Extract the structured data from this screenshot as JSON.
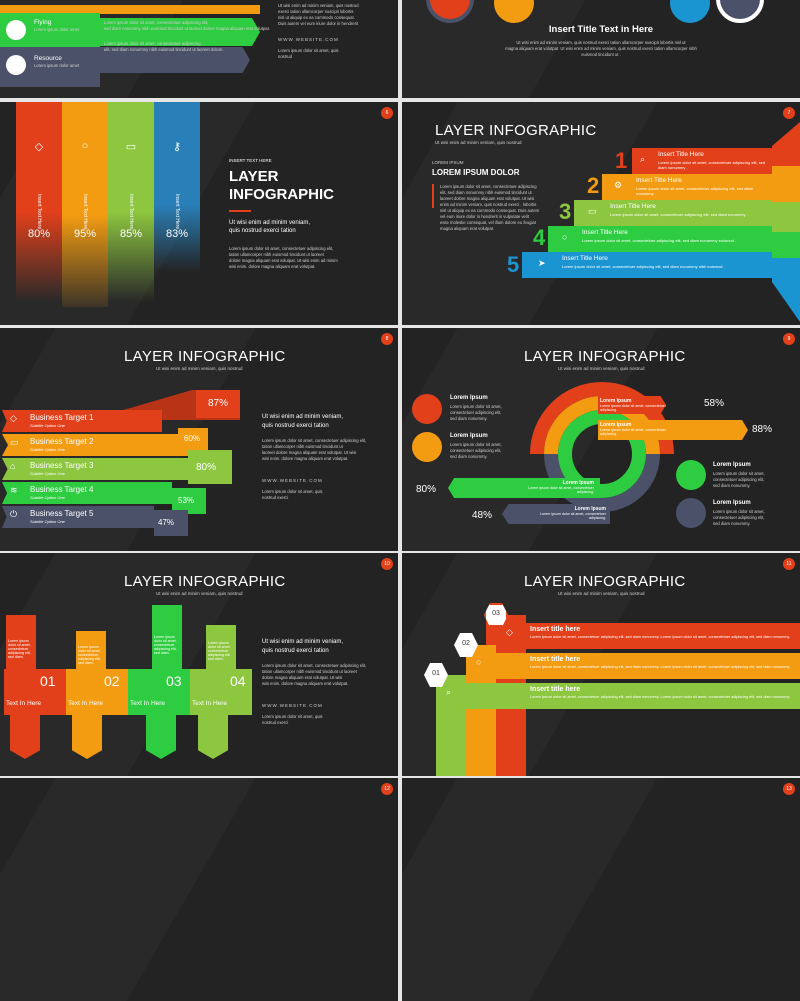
{
  "s1": {
    "rows": [
      {
        "label": "Flying",
        "text": "Lorem ipsum dolor amet"
      },
      {
        "label": "Resource",
        "text": "Lorem ipsum dolor amet"
      }
    ],
    "lines": [
      "Lorem ipsum dolor sit amet, consectetuer adipiscing elit,",
      "sed diam nonummy nibh euismod tincidunt ut laoreet dolore magna aliquam erat volutpat.",
      "Lorem ipsum dolor sit amet, consectetuer adipiscing",
      "elit, sed diam nonummy nibh euismod tincidunt ut laoreet dolore."
    ],
    "right": [
      "Ut wisi enim ad minim veniam, quis nostrud",
      "exerci tation ullamcorper suscipit lobortis",
      "nisl ut aliquip ex ea commodo consequat.",
      "Duis autem vel eum iriure dolor in hendrerit"
    ],
    "website": "WWW.WEBSITE.COM",
    "sm": [
      "Lorem ipsum dolor sit amet, quis",
      "nostrud"
    ]
  },
  "s2": {
    "title": "Insert Title Text in Here",
    "body": [
      "Ut wisi enim ad minim veniam, quis nostrud exerci tation ullamcorper suscipit lobortis nisl ut",
      "magna aliquam erat volutpat. Ut wisi enim ad minim veniam, quis nostrud exerci tation ullamcorper nibh",
      "euismod tincidunt ut ."
    ]
  },
  "s3": {
    "num": "6",
    "cols": [
      {
        "label": "Insert Text Here",
        "pct": "80%",
        "color": "#e2401b"
      },
      {
        "label": "Insert Text Here",
        "pct": "95%",
        "color": "#f39c12"
      },
      {
        "label": "Insert Text Here",
        "pct": "85%",
        "color": "#8dc63f"
      },
      {
        "label": "Insert Text Here",
        "pct": "83%",
        "color": "#2980b9"
      }
    ],
    "kicker": "INSERT TEXT HERE",
    "title1": "LAYER",
    "title2": "INFOGRAPHIC",
    "lead": [
      "Ut wisi enim ad minim veniam,",
      "quis nostrud exerci tation"
    ],
    "body": [
      "Lorem ipsum dolor sit amet, consectetuer adipiscing elit,",
      "tation ullamcorper nibh euismod tincidunt ut laoreet",
      "dolore magna aliquam erat volutpat. Ut wisi enim ad minim",
      "wisi enim. dolore magna aliquam erat volutpat."
    ]
  },
  "s4": {
    "num": "7",
    "title": "LAYER INFOGRAPHIC",
    "sub": "Ut wisi enim ad minim veniam, quis nostrud",
    "kicker": "LOREM IPSUM",
    "heading": "LOREM IPSUM DOLOR",
    "body": [
      "Lorem ipsum dolor sit amet, consectetuer adipiscing",
      "elit, sed diam nonummy nibh euismod tincidunt ut",
      "laoreet dolore magna aliquam erat volutpat. Ut wisi",
      "enim ad minim veniam, quis nostrud exerci . lobortis",
      "nisl ut aliquip ex ea commodo consequat. Duis autem",
      "vel eum iriure dolor in hendrerit in vulputate velit",
      "esse molestie consequat, vel illum dolore eu feugiat",
      "magna aliquam erat volutpat."
    ],
    "steps": [
      {
        "n": "1",
        "title": "Insert Title Here",
        "text": "Lorem ipsum dolor sit amet, consectetuer adipiscing elit, sed diam nonummy .",
        "color": "#e2401b"
      },
      {
        "n": "2",
        "title": "Insert Title Here",
        "text": "Lorem ipsum dolor sit amet, consectetuer adipiscing elit, sed diam nonummy .",
        "color": "#f39c12"
      },
      {
        "n": "3",
        "title": "Insert Title Here",
        "text": "Lorem ipsum dolor sit amet, consectetuer adipiscing elit, sed diam nonummy .",
        "color": "#8dc63f"
      },
      {
        "n": "4",
        "title": "Insert Title Here",
        "text": "Lorem ipsum dolor sit amet, consectetuer adipiscing elit, sed diam nonummy euismod .",
        "color": "#2ecc40"
      },
      {
        "n": "5",
        "title": "Insert Title Here",
        "text": "Lorem ipsum dolor sit amet, consectetuer adipiscing elit, sed diam nonummy nibh euismod .",
        "color": "#1b95d2"
      }
    ]
  },
  "s5": {
    "num": "8",
    "title": "LAYER INFOGRAPHIC",
    "sub": "Ut wisi enim ad minim veniam, quis nostrud",
    "targets": [
      {
        "name": "Business Target 1",
        "sub": "Subtitle Option One",
        "pct": "87%",
        "color": "#e2401b"
      },
      {
        "name": "Business Target 2",
        "sub": "Subtitle Option One",
        "pct": "60%",
        "color": "#f39c12"
      },
      {
        "name": "Business Target 3",
        "sub": "Subtitle Option One",
        "pct": "80%",
        "color": "#8dc63f"
      },
      {
        "name": "Business Target 4",
        "sub": "Subtitle Option One",
        "pct": "53%",
        "color": "#2ecc40"
      },
      {
        "name": "Business Target 5",
        "sub": "Subtitle Option One",
        "pct": "47%",
        "color": "#4a5168"
      }
    ],
    "lead": [
      "Ut wisi enim ad minim veniam,",
      "quis nostrud exerci tation"
    ],
    "body": [
      "Lorem ipsum dolor sit amet, consectetuer adipiscing elit,",
      "tation ullamcorper nibh euismod tincidunt ut",
      "laoreet dolore magna aliquam erat volutpat. Ut wisi",
      "wisi enim. dolore magna aliquam erat volutpat."
    ],
    "website": "WWW.WEBSITE.COM",
    "sm": [
      "Lorem ipsum dolor sit amet, quis",
      "nostrud exerci"
    ]
  },
  "s6": {
    "num": "9",
    "title": "LAYER INFOGRAPHIC",
    "sub": "Ut wisi enim ad minim veniam, quis nostrud",
    "items": [
      {
        "h": "Lorem Ipsum",
        "t": [
          "Lorem ipsum dolor sit amet,",
          "consectetuer adipiscing elit,",
          "sed diam nonummy."
        ]
      },
      {
        "h": "Lorem Ipsum",
        "t": [
          "Lorem ipsum dolor sit amet,",
          "consectetuer adipiscing elit,",
          "sed diam nonummy."
        ]
      },
      {
        "h": "Lorem Ipsum",
        "t": [
          "Lorem ipsum dolor sit amet,",
          "consectetuer adipiscing elit,",
          "sed diam nonummy."
        ]
      },
      {
        "h": "Lorem Ipsum",
        "t": [
          "Lorem ipsum dolor sit amet,",
          "consectetuer adipiscing elit,",
          "sed diam nonummy."
        ]
      }
    ],
    "pct": [
      "58%",
      "88%",
      "80%",
      "48%"
    ],
    "arc": [
      {
        "h": "Lorem Ipsum",
        "t": "Lorem ipsum dolor sit amet, consectetuer adipiscing."
      },
      {
        "h": "Lorem Ipsum",
        "t": "Lorem ipsum dolor sit amet, consectetuer adipiscing."
      },
      {
        "h": "Lorem Ipsum",
        "t": "Lorem ipsum dolor sit amet, consectetuer adipiscing."
      },
      {
        "h": "Lorem Ipsum",
        "t": "Lorem ipsum dolor sit amet, consectetuer adipiscing."
      }
    ]
  },
  "s7": {
    "num": "10",
    "title": "LAYER INFOGRAPHIC",
    "sub": "Ut wisi enim ad minim veniam, quis nostrud",
    "blocks": [
      {
        "n": "01",
        "label": "Text In Here",
        "color": "#e2401b"
      },
      {
        "n": "02",
        "label": "Text In Here",
        "color": "#f39c12"
      },
      {
        "n": "03",
        "label": "Text In Here",
        "color": "#2ecc40"
      },
      {
        "n": "04",
        "label": "Text In Here",
        "color": "#8dc63f"
      }
    ],
    "small": "Lorem ipsum dolor sit amet, consectetuer adipiscing elit, sed diam.",
    "lead": [
      "Ut wisi enim ad minim veniam,",
      "quis nostrud exerci tation"
    ],
    "body": [
      "Lorem ipsum dolor sit amet, consectetuer adipiscing elit,",
      "tation ullamcorper nibh euismod tincidunt ut laoreet",
      "dolore magna aliquam erat volutpat. Ut wisi",
      "wisi enim. dolore magna aliquam erat volutpat."
    ],
    "website": "WWW.WEBSITE.COM",
    "sm": [
      "Lorem ipsum dolor sit amet, quis",
      "nostrud exerci"
    ]
  },
  "s8": {
    "num": "11",
    "title": "LAYER INFOGRAPHIC",
    "sub": "Ut wisi enim ad minim veniam, quis nostrud",
    "rows": [
      {
        "n": "03",
        "h": "Insert title here",
        "t": "Lorem ipsum dolor sit amet, consectetuer adipiscing elit, sed diam nonummy. Lorem ipsum dolor sit amet, consectetuer adipiscing elit, sed diam nonummy.",
        "color": "#e2401b"
      },
      {
        "n": "02",
        "h": "Insert title here",
        "t": "Lorem ipsum dolor sit amet, consectetuer adipiscing elit, sed diam nonummy. Lorem ipsum dolor sit amet, consectetuer adipiscing elit, sed diam nonummy.",
        "color": "#f39c12"
      },
      {
        "n": "01",
        "h": "Insert title here",
        "t": "Lorem ipsum dolor sit amet, consectetuer adipiscing elit, sed diam nonummy. Lorem ipsum dolor sit amet, consectetuer adipiscing elit, sed diam nonummy.",
        "color": "#8dc63f"
      }
    ]
  },
  "s9": {
    "num": "12"
  },
  "s10": {
    "num": "13"
  }
}
